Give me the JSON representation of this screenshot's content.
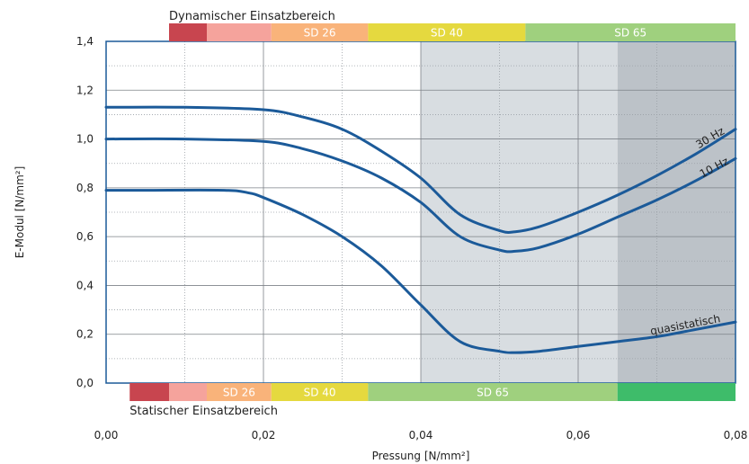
{
  "chart_data": {
    "type": "line",
    "title": "",
    "xlabel": "Pressung [N/mm²]",
    "ylabel": "E-Modul [N/mm²]",
    "xlim": [
      0,
      0.08
    ],
    "ylim": [
      0,
      1.4
    ],
    "x_ticks": [
      0,
      0.02,
      0.04,
      0.06,
      0.08
    ],
    "x_tick_labels": [
      "0,00",
      "0,02",
      "0,04",
      "0,06",
      "0,08"
    ],
    "y_ticks": [
      0,
      0.2,
      0.4,
      0.6,
      0.8,
      1.0,
      1.2,
      1.4
    ],
    "y_tick_labels": [
      "0,0",
      "0,2",
      "0,4",
      "0,6",
      "0,8",
      "1,0",
      "1,2",
      "1,4"
    ],
    "grid": true,
    "shaded_regions": [
      {
        "from": 0.04,
        "to": 0.065,
        "color": "#d8dde1"
      },
      {
        "from": 0.065,
        "to": 0.08,
        "color": "#bcc2c8"
      }
    ],
    "series": [
      {
        "name": "30 Hz",
        "color": "#1b5a99",
        "x": [
          0,
          0.01,
          0.02,
          0.025,
          0.03,
          0.035,
          0.04,
          0.045,
          0.05,
          0.052,
          0.055,
          0.06,
          0.065,
          0.07,
          0.075,
          0.08
        ],
        "y": [
          1.13,
          1.13,
          1.12,
          1.09,
          1.04,
          0.95,
          0.84,
          0.69,
          0.625,
          0.62,
          0.64,
          0.7,
          0.77,
          0.85,
          0.94,
          1.04
        ]
      },
      {
        "name": "10 Hz",
        "color": "#1b5a99",
        "x": [
          0,
          0.01,
          0.02,
          0.025,
          0.03,
          0.035,
          0.04,
          0.045,
          0.05,
          0.052,
          0.055,
          0.06,
          0.065,
          0.07,
          0.075,
          0.08
        ],
        "y": [
          1.0,
          1.0,
          0.99,
          0.96,
          0.91,
          0.84,
          0.74,
          0.6,
          0.545,
          0.54,
          0.555,
          0.61,
          0.68,
          0.75,
          0.83,
          0.92
        ]
      },
      {
        "name": "quasistatisch",
        "color": "#1b5a99",
        "x": [
          0,
          0.005,
          0.015,
          0.018,
          0.02,
          0.025,
          0.03,
          0.035,
          0.04,
          0.045,
          0.05,
          0.052,
          0.055,
          0.06,
          0.065,
          0.07,
          0.075,
          0.08
        ],
        "y": [
          0.79,
          0.79,
          0.79,
          0.78,
          0.76,
          0.69,
          0.6,
          0.48,
          0.32,
          0.17,
          0.13,
          0.125,
          0.13,
          0.15,
          0.17,
          0.19,
          0.22,
          0.25
        ]
      }
    ],
    "top_band": {
      "title": "Dynamischer Einsatzbereich",
      "segments": [
        {
          "from": 0.008,
          "to": 0.0128,
          "color": "#c8454f",
          "label": ""
        },
        {
          "from": 0.0128,
          "to": 0.021,
          "color": "#f5a39c",
          "label": ""
        },
        {
          "from": 0.021,
          "to": 0.0333,
          "color": "#f9b37a",
          "label": "SD 26"
        },
        {
          "from": 0.0333,
          "to": 0.0533,
          "color": "#e5d93f",
          "label": "SD 40"
        },
        {
          "from": 0.0533,
          "to": 0.08,
          "color": "#9fd07e",
          "label": "SD 65"
        }
      ]
    },
    "bottom_band": {
      "title": "Statischer Einsatzbereich",
      "segments": [
        {
          "from": 0.003,
          "to": 0.008,
          "color": "#c8454f",
          "label": ""
        },
        {
          "from": 0.008,
          "to": 0.0128,
          "color": "#f5a39c",
          "label": ""
        },
        {
          "from": 0.0128,
          "to": 0.021,
          "color": "#f9b37a",
          "label": "SD 26"
        },
        {
          "from": 0.021,
          "to": 0.0333,
          "color": "#e5d93f",
          "label": "SD 40"
        },
        {
          "from": 0.0333,
          "to": 0.065,
          "color": "#9fd07e",
          "label": "SD 65"
        },
        {
          "from": 0.065,
          "to": 0.08,
          "color": "#3ebc6a",
          "label": ""
        }
      ]
    }
  }
}
